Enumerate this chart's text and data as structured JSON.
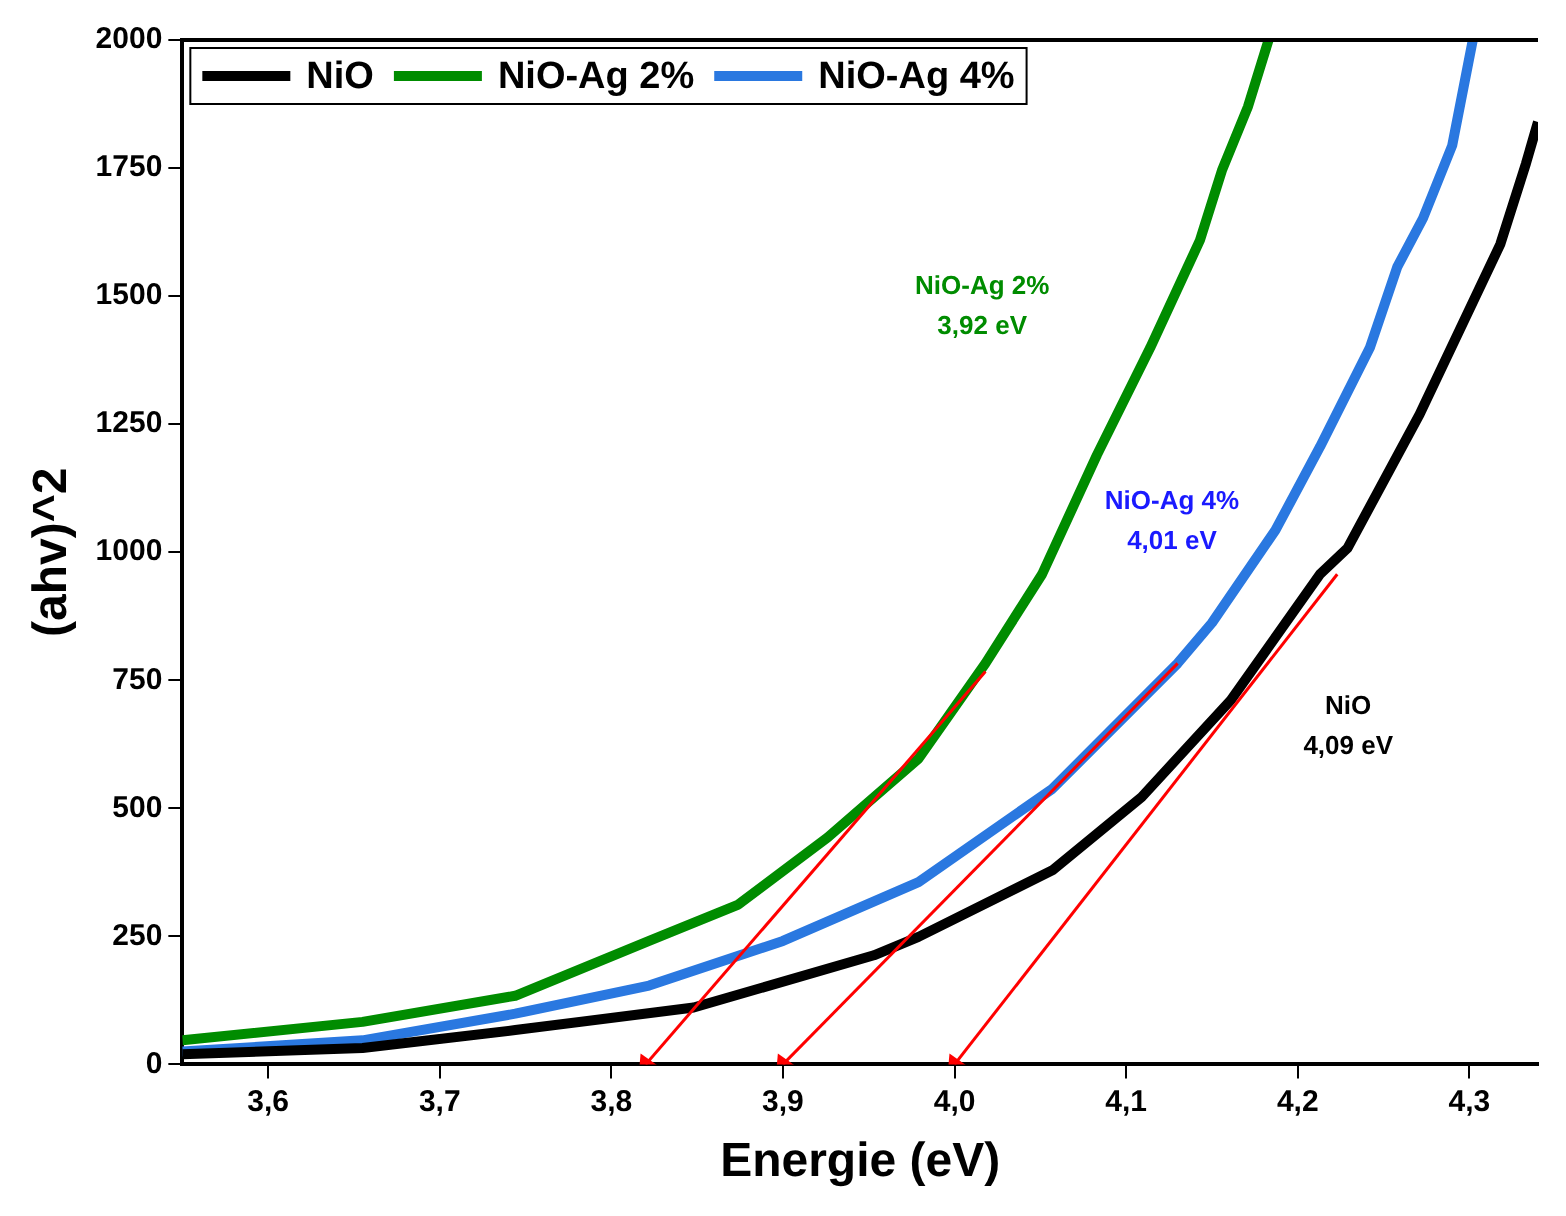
{
  "chart_data": {
    "type": "line",
    "xlabel": "Energie (eV)",
    "ylabel": "(ahv)^2",
    "xlim": [
      3.55,
      4.34
    ],
    "ylim": [
      0,
      2000
    ],
    "xticks": [
      {
        "value": 3.6,
        "label": "3,6"
      },
      {
        "value": 3.7,
        "label": "3,7"
      },
      {
        "value": 3.8,
        "label": "3,8"
      },
      {
        "value": 3.9,
        "label": "3,9"
      },
      {
        "value": 4.0,
        "label": "4,0"
      },
      {
        "value": 4.1,
        "label": "4,1"
      },
      {
        "value": 4.2,
        "label": "4,2"
      },
      {
        "value": 4.3,
        "label": "4,3"
      }
    ],
    "yticks": [
      0,
      250,
      500,
      750,
      1000,
      1250,
      1500,
      1750,
      2000
    ],
    "grid": false,
    "legend": "top left",
    "marker": "none",
    "line_style": "solid",
    "series": [
      {
        "name": "NiO",
        "color": "#000000",
        "x": [
          3.55,
          3.655,
          3.744,
          3.848,
          3.953,
          3.979,
          4.057,
          4.109,
          4.161,
          4.213,
          4.229,
          4.271,
          4.318,
          4.333,
          4.34
        ],
        "values": [
          20,
          32,
          67,
          111,
          213,
          249,
          379,
          522,
          711,
          957,
          1008,
          1269,
          1601,
          1759,
          1840
        ]
      },
      {
        "name": "NiO-Ag 2%",
        "color": "#008c00",
        "x": [
          3.55,
          3.655,
          3.744,
          3.822,
          3.874,
          3.926,
          3.979,
          4.018,
          4.051,
          4.083,
          4.114,
          4.143,
          4.156,
          4.171,
          4.183
        ],
        "values": [
          47,
          83,
          134,
          241,
          312,
          443,
          597,
          783,
          957,
          1190,
          1399,
          1609,
          1747,
          1870,
          2000
        ]
      },
      {
        "name": "NiO-Ag 4%",
        "color": "#2a78e0",
        "x": [
          3.55,
          3.655,
          3.744,
          3.822,
          3.9,
          3.979,
          4.057,
          4.13,
          4.15,
          4.187,
          4.213,
          4.242,
          4.258,
          4.273,
          4.29,
          4.302
        ],
        "values": [
          25,
          47,
          99,
          154,
          241,
          356,
          538,
          783,
          862,
          1043,
          1206,
          1399,
          1557,
          1652,
          1794,
          2000
        ]
      },
      {
        "type": "line",
        "color": "#ff0000",
        "marker": "triangle",
        "x": [
          4.018,
          3.82
        ],
        "values": [
          767,
          0
        ]
      },
      {
        "type": "line",
        "color": "#ff0000",
        "marker": "triangle",
        "x": [
          4.13,
          3.9
        ],
        "values": [
          783,
          0
        ]
      },
      {
        "type": "line",
        "color": "#ff0000",
        "marker": "triangle",
        "x": [
          4.223,
          4.0
        ],
        "values": [
          957,
          0
        ]
      }
    ],
    "annotations": [
      "NiO\n4,09 eV",
      "NiO-Ag 2%\n3,92 eV",
      "NiO-Ag 4%\n4,01 eV"
    ]
  }
}
